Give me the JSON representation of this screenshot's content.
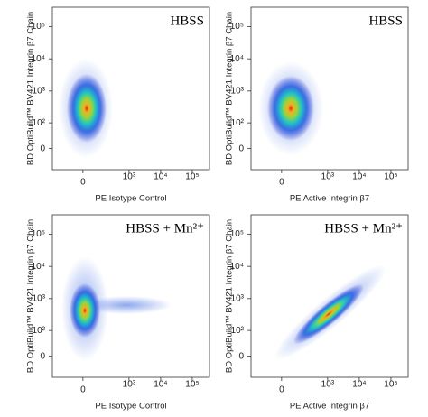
{
  "chart_data": [
    {
      "type": "scatter",
      "title": "HBSS",
      "xlabel": "PE Isotype Control",
      "ylabel": "BD OptiBuild™ BV421 Integrin β7 Chain",
      "xscale": "biexponential",
      "yscale": "biexponential",
      "xlim": [
        -320,
        350000
      ],
      "ylim": [
        -70,
        400000
      ],
      "xticks": [
        0,
        {
          "value": 1000,
          "label": "10³"
        },
        {
          "value": 10000,
          "label": "10⁴"
        },
        {
          "value": 100000,
          "label": "10⁵"
        }
      ],
      "yticks": [
        0,
        {
          "value": 100,
          "label": "10²"
        },
        {
          "value": 1000,
          "label": "10³"
        },
        {
          "value": 10000,
          "label": "10⁴"
        },
        {
          "value": 100000,
          "label": "10⁵"
        }
      ]
    },
    {
      "type": "scatter",
      "title": "HBSS",
      "xlabel": "PE Active Integrin β7",
      "ylabel": "BD OptiBuild™ BV421 Integrin β7 Chain",
      "xscale": "biexponential",
      "yscale": "biexponential",
      "xlim": [
        -320,
        350000
      ],
      "ylim": [
        -70,
        400000
      ],
      "xticks": [
        0,
        {
          "value": 1000,
          "label": "10³"
        },
        {
          "value": 10000,
          "label": "10⁴"
        },
        {
          "value": 100000,
          "label": "10⁵"
        }
      ],
      "yticks": [
        0,
        {
          "value": 100,
          "label": "10²"
        },
        {
          "value": 1000,
          "label": "10³"
        },
        {
          "value": 10000,
          "label": "10⁴"
        },
        {
          "value": 100000,
          "label": "10⁵"
        }
      ]
    },
    {
      "type": "scatter",
      "title": "HBSS + Mn²⁺",
      "xlabel": "PE Isotype Control",
      "ylabel": "BD OptiBuild™ BV421 Integrin β7 Chain",
      "xscale": "biexponential",
      "yscale": "biexponential",
      "xlim": [
        -320,
        350000
      ],
      "ylim": [
        -70,
        400000
      ],
      "xticks": [
        0,
        {
          "value": 1000,
          "label": "10³"
        },
        {
          "value": 10000,
          "label": "10⁴"
        },
        {
          "value": 100000,
          "label": "10⁵"
        }
      ],
      "yticks": [
        0,
        {
          "value": 100,
          "label": "10²"
        },
        {
          "value": 1000,
          "label": "10³"
        },
        {
          "value": 10000,
          "label": "10⁴"
        },
        {
          "value": 100000,
          "label": "10⁵"
        }
      ]
    },
    {
      "type": "scatter",
      "title": "HBSS + Mn²⁺",
      "xlabel": "PE Active Integrin β7",
      "ylabel": "BD OptiBuild™ BV421 Integrin β7 Chain",
      "xscale": "biexponential",
      "yscale": "biexponential",
      "xlim": [
        -320,
        350000
      ],
      "ylim": [
        -70,
        400000
      ],
      "xticks": [
        0,
        {
          "value": 1000,
          "label": "10³"
        },
        {
          "value": 10000,
          "label": "10⁴"
        },
        {
          "value": 100000,
          "label": "10⁵"
        }
      ],
      "yticks": [
        0,
        {
          "value": 100,
          "label": "10²"
        },
        {
          "value": 1000,
          "label": "10³"
        },
        {
          "value": 10000,
          "label": "10⁴"
        },
        {
          "value": 100000,
          "label": "10⁵"
        }
      ]
    }
  ]
}
